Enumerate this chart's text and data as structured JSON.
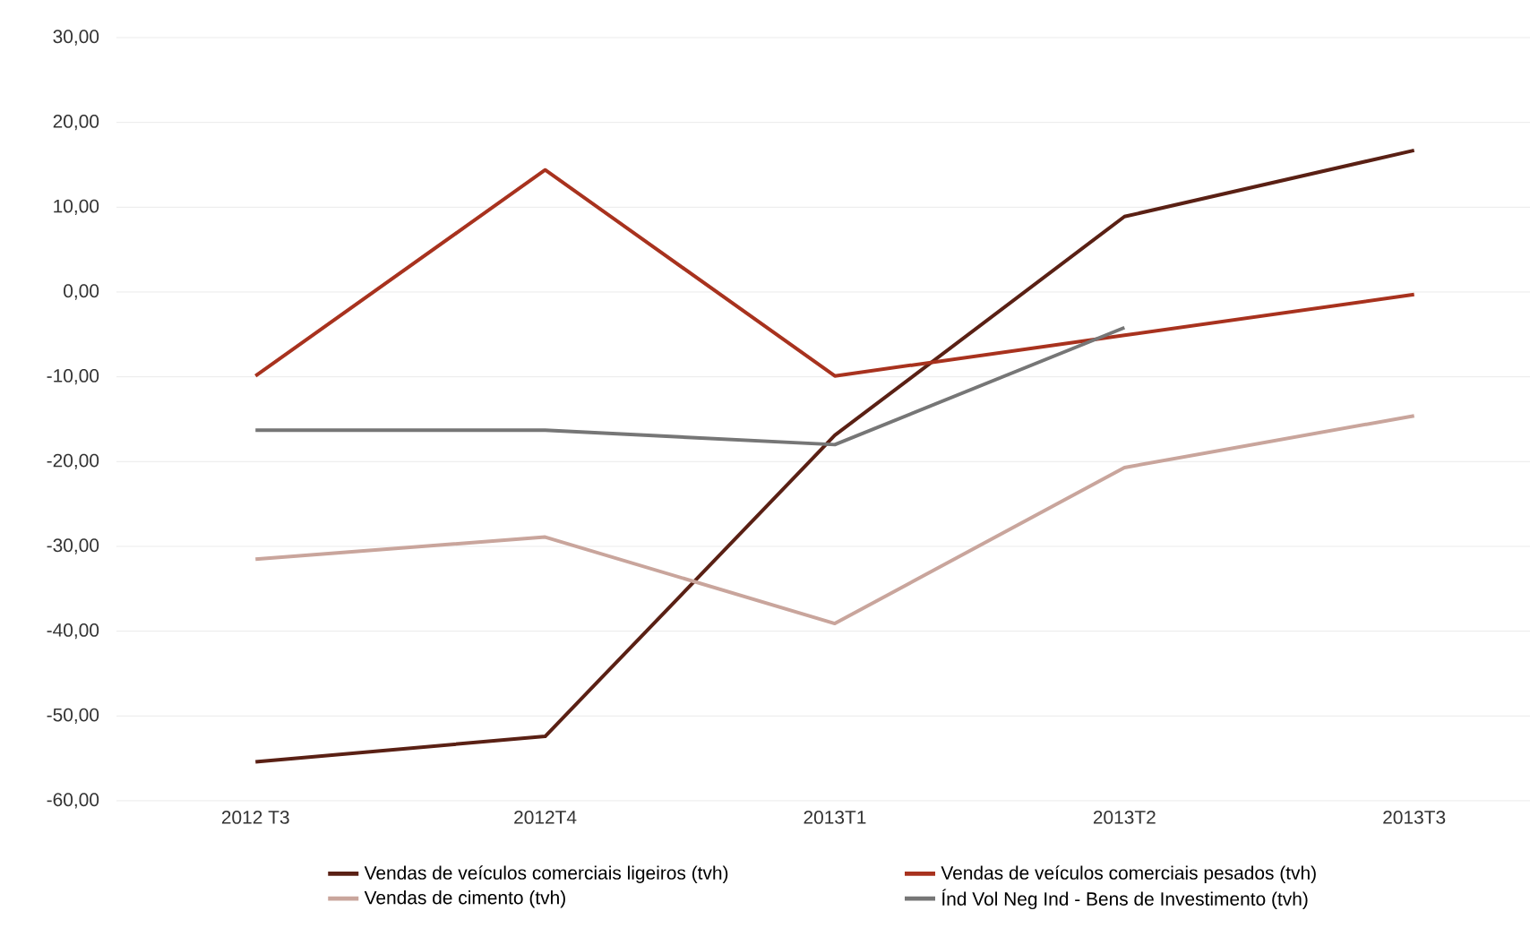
{
  "chart_data": {
    "type": "line",
    "categories": [
      "2012 T3",
      "2012T4",
      "2013T1",
      "2013T2",
      "2013T3"
    ],
    "series": [
      {
        "name": "Vendas de veículos comerciais ligeiros  (tvh)",
        "color": "#5a2014",
        "values": [
          -55.4,
          -52.4,
          -16.9,
          8.9,
          16.7
        ]
      },
      {
        "name": "Vendas de veículos comerciais pesados (tvh)",
        "color": "#a8321e",
        "values": [
          -9.9,
          14.4,
          -9.9,
          -5.1,
          -0.3
        ]
      },
      {
        "name": "Vendas de cimento (tvh)",
        "color": "#c9a59c",
        "values": [
          -31.5,
          -28.9,
          -39.1,
          -20.7,
          -14.6
        ]
      },
      {
        "name": "Índ Vol Neg  Ind - Bens de Investimento (tvh)",
        "color": "#767676",
        "values": [
          -16.3,
          -16.3,
          -18.0,
          -4.2,
          null
        ]
      }
    ],
    "ylim": [
      -60,
      30
    ],
    "yticks": [
      {
        "value": -60,
        "label": "-60,00"
      },
      {
        "value": -50,
        "label": "-50,00"
      },
      {
        "value": -40,
        "label": "-40,00"
      },
      {
        "value": -30,
        "label": "-30,00"
      },
      {
        "value": -20,
        "label": "-20,00"
      },
      {
        "value": -10,
        "label": "-10,00"
      },
      {
        "value": 0,
        "label": "0,00"
      },
      {
        "value": 10,
        "label": "10,00"
      },
      {
        "value": 20,
        "label": "20,00"
      },
      {
        "value": 30,
        "label": "30,00"
      }
    ],
    "grid": "y",
    "legend": "bottom",
    "marker": "none",
    "line_style": "solid"
  }
}
